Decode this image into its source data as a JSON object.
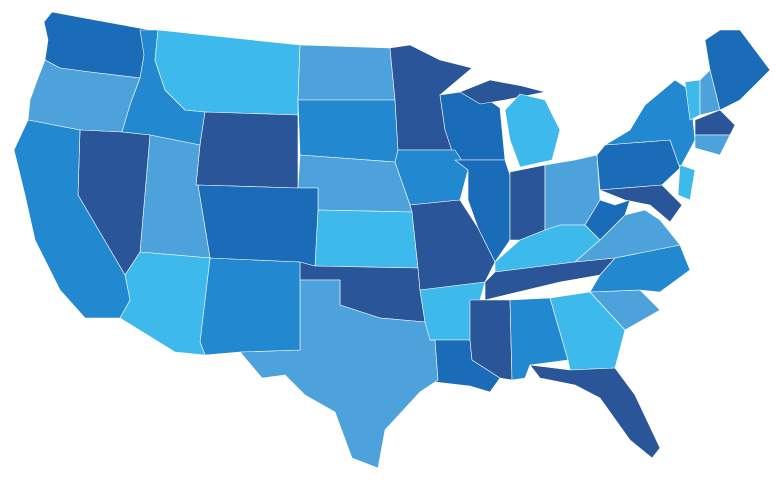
{
  "palette": {
    "dark": "#2a5599",
    "medium_dark": "#1a6bb8",
    "medium": "#2289d1",
    "light_medium": "#4da2dc",
    "light": "#3db9ec"
  },
  "background": "#ffffff",
  "states": [
    {
      "id": "wa",
      "fill": "medium_dark"
    },
    {
      "id": "or",
      "fill": "light_medium"
    },
    {
      "id": "id",
      "fill": "medium"
    },
    {
      "id": "mt",
      "fill": "light"
    },
    {
      "id": "wy",
      "fill": "dark"
    },
    {
      "id": "nd",
      "fill": "light_medium"
    },
    {
      "id": "sd",
      "fill": "medium"
    },
    {
      "id": "ne",
      "fill": "light_medium"
    },
    {
      "id": "ks",
      "fill": "light"
    },
    {
      "id": "ok",
      "fill": "dark"
    },
    {
      "id": "tx",
      "fill": "light_medium"
    },
    {
      "id": "nm",
      "fill": "medium"
    },
    {
      "id": "co",
      "fill": "medium_dark"
    },
    {
      "id": "ut",
      "fill": "light_medium"
    },
    {
      "id": "az",
      "fill": "light"
    },
    {
      "id": "nv",
      "fill": "dark"
    },
    {
      "id": "ca",
      "fill": "medium"
    },
    {
      "id": "mn",
      "fill": "dark"
    },
    {
      "id": "wi",
      "fill": "medium_dark"
    },
    {
      "id": "ia",
      "fill": "medium"
    },
    {
      "id": "mo",
      "fill": "dark"
    },
    {
      "id": "il",
      "fill": "medium_dark"
    },
    {
      "id": "in",
      "fill": "dark"
    },
    {
      "id": "oh",
      "fill": "light_medium"
    },
    {
      "id": "mi-upper",
      "fill": "dark"
    },
    {
      "id": "mi-lower",
      "fill": "light"
    },
    {
      "id": "ky",
      "fill": "light"
    },
    {
      "id": "tn",
      "fill": "dark"
    },
    {
      "id": "ar",
      "fill": "light"
    },
    {
      "id": "la",
      "fill": "medium_dark"
    },
    {
      "id": "ms",
      "fill": "dark"
    },
    {
      "id": "al",
      "fill": "medium"
    },
    {
      "id": "ga",
      "fill": "light"
    },
    {
      "id": "fl",
      "fill": "dark"
    },
    {
      "id": "sc",
      "fill": "light_medium"
    },
    {
      "id": "nc",
      "fill": "medium"
    },
    {
      "id": "va",
      "fill": "light_medium"
    },
    {
      "id": "wv",
      "fill": "medium_dark"
    },
    {
      "id": "pa",
      "fill": "medium_dark"
    },
    {
      "id": "ny",
      "fill": "medium"
    },
    {
      "id": "nj",
      "fill": "light"
    },
    {
      "id": "md-de",
      "fill": "dark"
    },
    {
      "id": "vt",
      "fill": "light"
    },
    {
      "id": "nh",
      "fill": "light_medium"
    },
    {
      "id": "me",
      "fill": "medium_dark"
    },
    {
      "id": "ma",
      "fill": "dark"
    },
    {
      "id": "ct-ri",
      "fill": "light_medium"
    }
  ]
}
